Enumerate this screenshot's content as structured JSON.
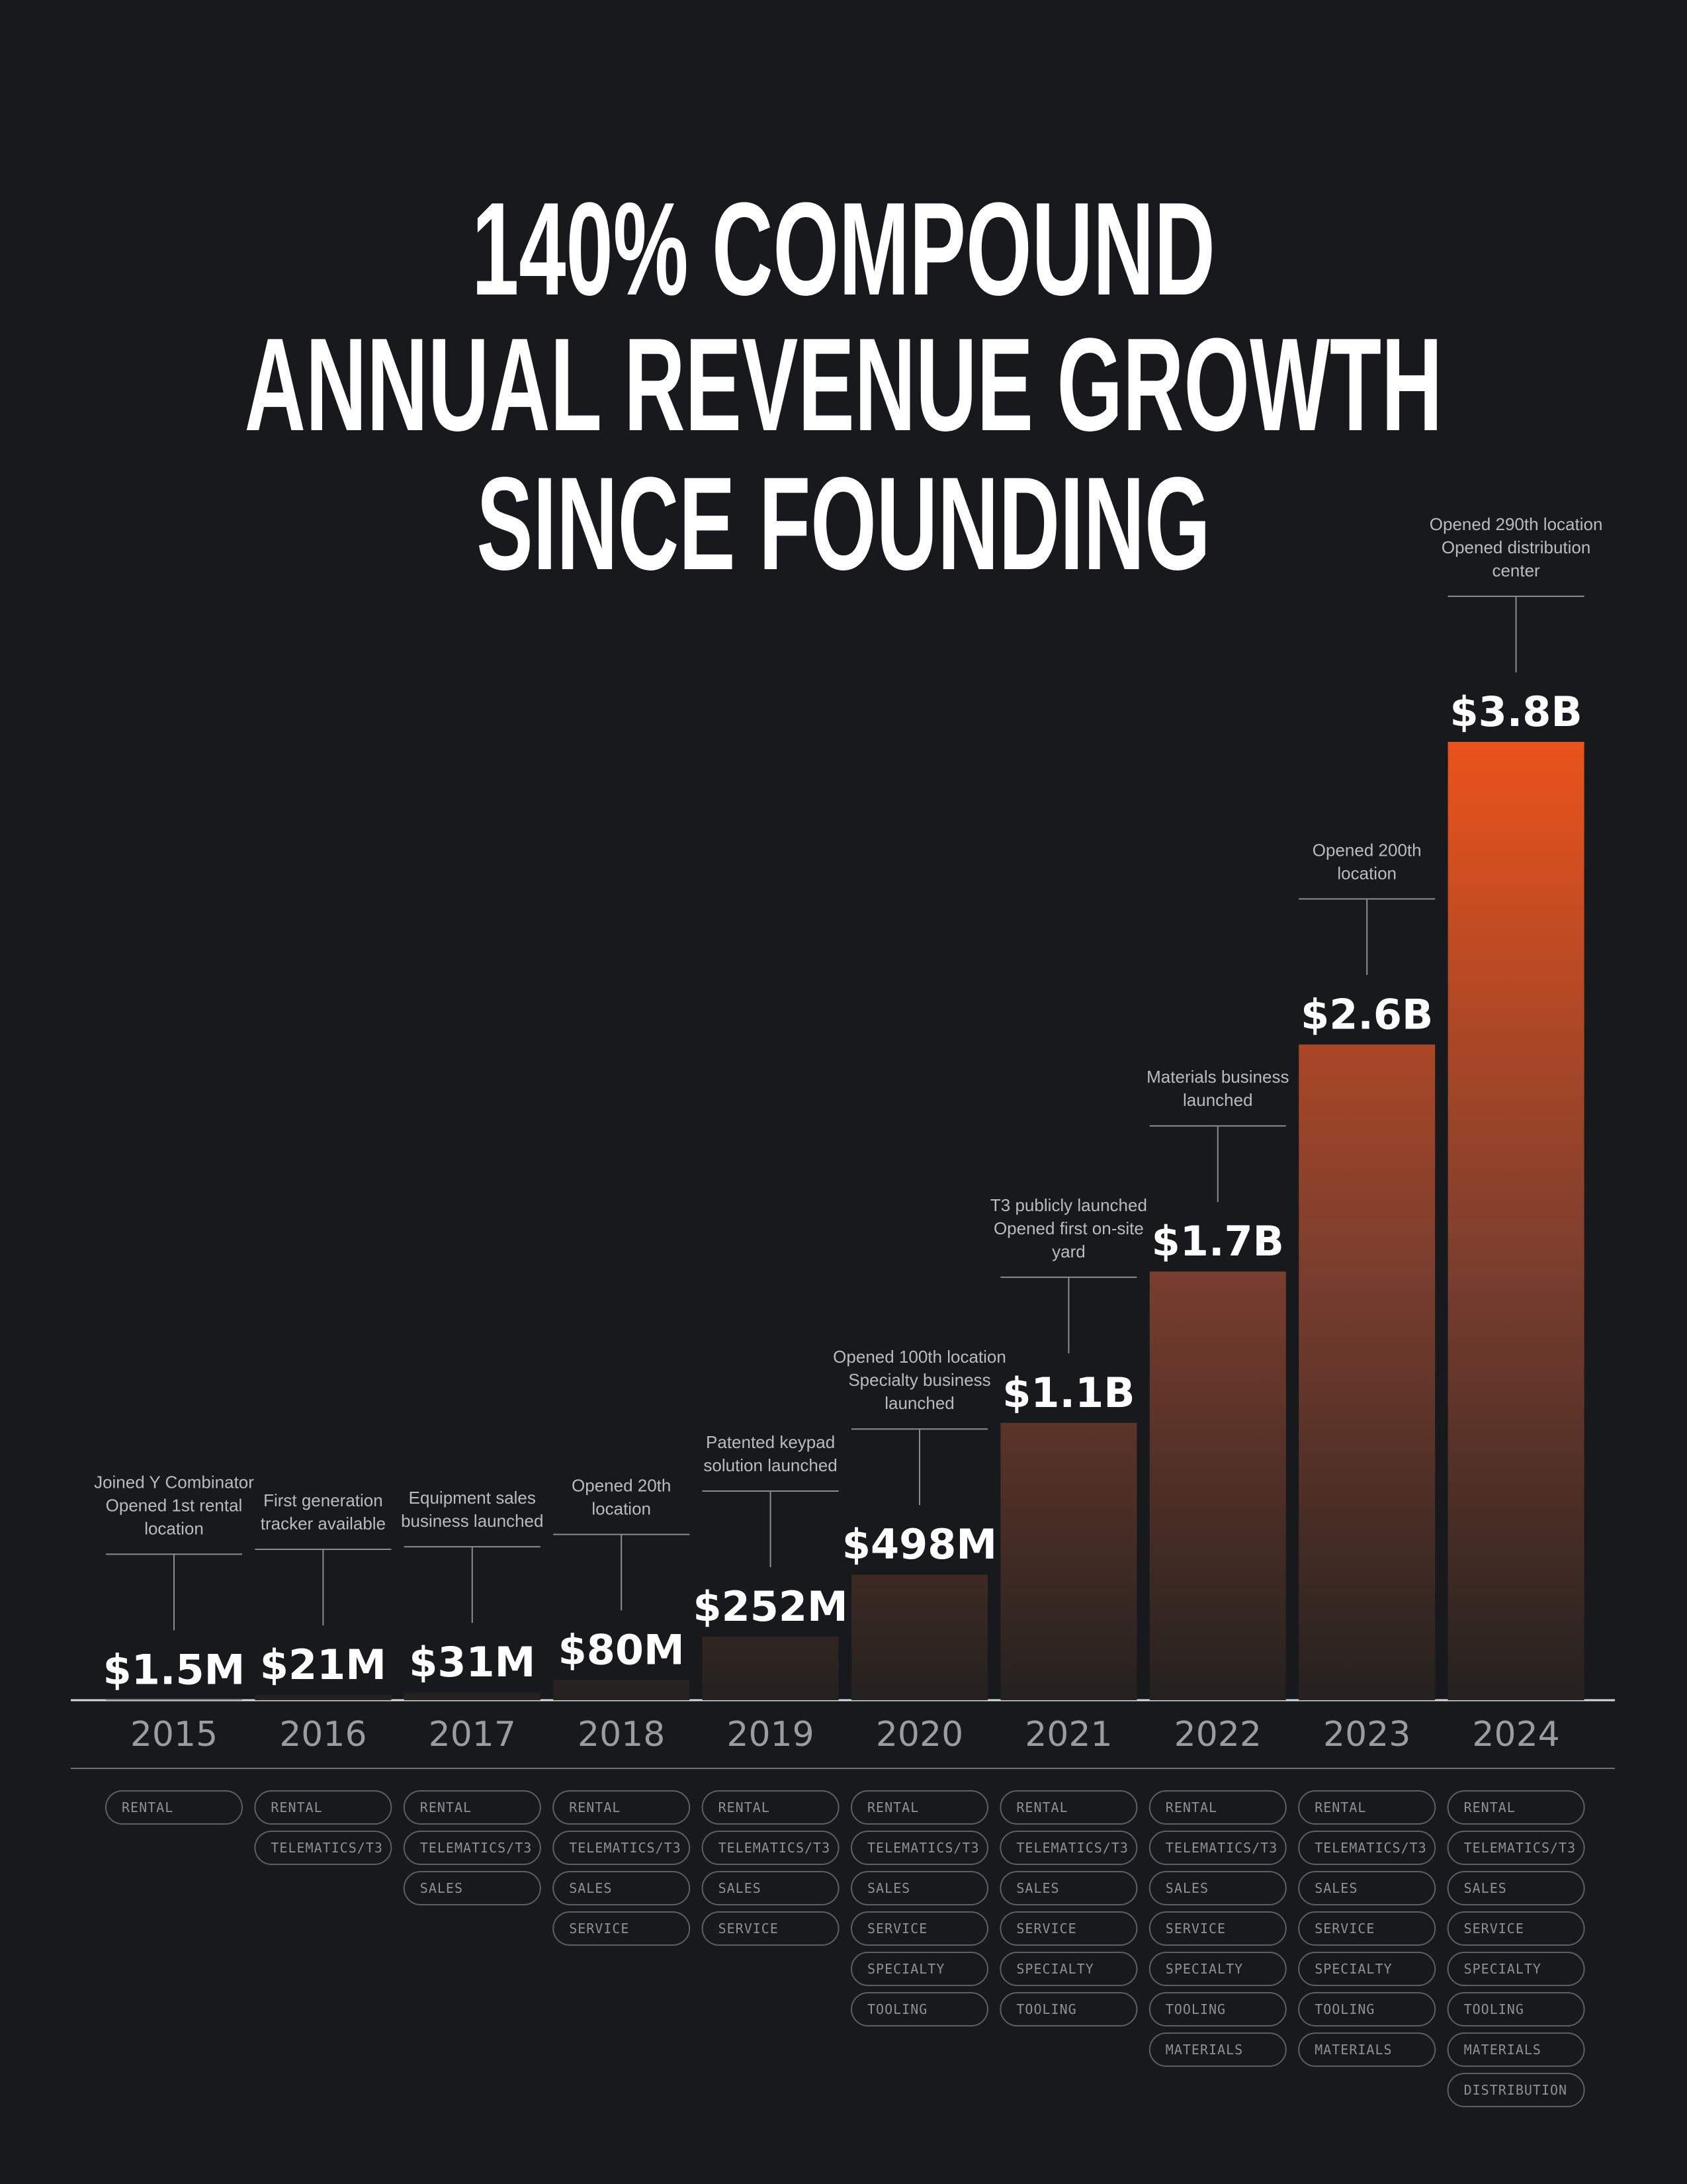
{
  "chart_data": {
    "type": "bar",
    "title": [
      "140% COMPOUND",
      "ANNUAL REVENUE GROWTH",
      "SINCE FOUNDING"
    ],
    "categories": [
      "2015",
      "2016",
      "2017",
      "2018",
      "2019",
      "2020",
      "2021",
      "2022",
      "2023",
      "2024"
    ],
    "values": [
      1500000,
      21000000,
      31000000,
      80000000,
      252000000,
      498000000,
      1100000000,
      1700000000,
      2600000000,
      3800000000
    ],
    "value_labels": [
      "$1.5M",
      "$21M",
      "$31M",
      "$80M",
      "$252M",
      "$498M",
      "$1.1B",
      "$1.7B",
      "$2.6B",
      "$3.8B"
    ],
    "color": "#ea531c",
    "annotations": [
      [
        "Joined Y Combinator",
        "Opened 1st rental",
        "location"
      ],
      [
        "First generation",
        "tracker available"
      ],
      [
        "Equipment sales",
        "business launched"
      ],
      [
        "Opened 20th",
        "location"
      ],
      [
        "Patented keypad",
        "solution launched"
      ],
      [
        "Opened 100th location",
        "Specialty business",
        "launched"
      ],
      [
        "T3 publicly launched",
        "Opened first on-site",
        "yard"
      ],
      [
        "Materials business",
        "launched"
      ],
      [
        "Opened 200th",
        "location"
      ],
      [
        "Opened 290th location",
        "Opened distribution",
        "center"
      ]
    ],
    "segments": [
      [
        "RENTAL"
      ],
      [
        "RENTAL",
        "TELEMATICS/T3"
      ],
      [
        "RENTAL",
        "TELEMATICS/T3",
        "SALES"
      ],
      [
        "RENTAL",
        "TELEMATICS/T3",
        "SALES",
        "SERVICE"
      ],
      [
        "RENTAL",
        "TELEMATICS/T3",
        "SALES",
        "SERVICE"
      ],
      [
        "RENTAL",
        "TELEMATICS/T3",
        "SALES",
        "SERVICE",
        "SPECIALTY",
        "TOOLING"
      ],
      [
        "RENTAL",
        "TELEMATICS/T3",
        "SALES",
        "SERVICE",
        "SPECIALTY",
        "TOOLING"
      ],
      [
        "RENTAL",
        "TELEMATICS/T3",
        "SALES",
        "SERVICE",
        "SPECIALTY",
        "TOOLING",
        "MATERIALS"
      ],
      [
        "RENTAL",
        "TELEMATICS/T3",
        "SALES",
        "SERVICE",
        "SPECIALTY",
        "TOOLING",
        "MATERIALS"
      ],
      [
        "RENTAL",
        "TELEMATICS/T3",
        "SALES",
        "SERVICE",
        "SPECIALTY",
        "TOOLING",
        "MATERIALS",
        "DISTRIBUTION"
      ]
    ]
  }
}
